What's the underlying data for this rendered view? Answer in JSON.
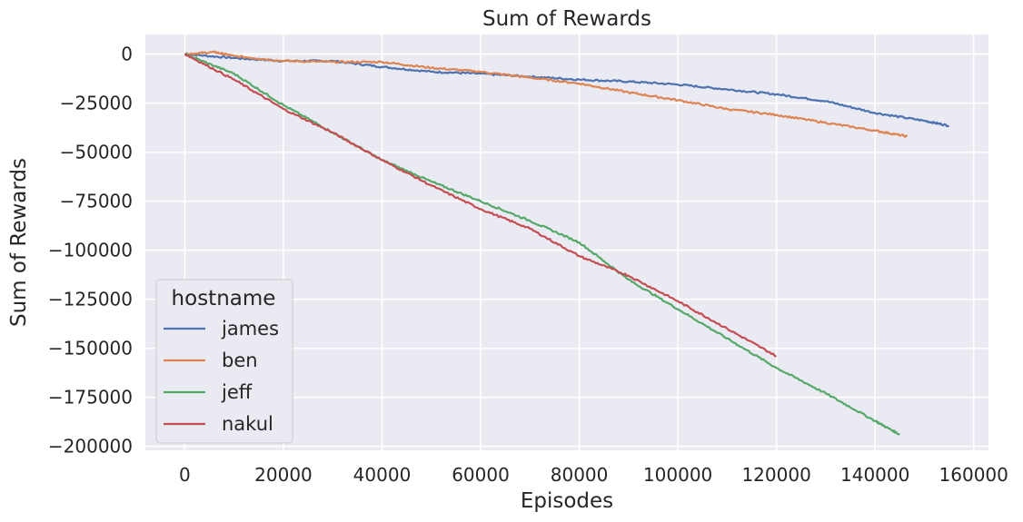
{
  "chart_data": {
    "type": "line",
    "title": "Sum of Rewards",
    "xlabel": "Episodes",
    "ylabel": "Sum of Rewards",
    "xlim": [
      -8000,
      163000
    ],
    "ylim": [
      -202000,
      10000
    ],
    "x_ticks": [
      0,
      20000,
      40000,
      60000,
      80000,
      100000,
      120000,
      140000,
      160000
    ],
    "x_tick_labels": [
      "0",
      "20000",
      "40000",
      "60000",
      "80000",
      "100000",
      "120000",
      "140000",
      "160000"
    ],
    "y_ticks": [
      0,
      -25000,
      -50000,
      -75000,
      -100000,
      -125000,
      -150000,
      -175000,
      -200000
    ],
    "y_tick_labels": [
      "0",
      "−25000",
      "−50000",
      "−75000",
      "−100000",
      "−125000",
      "−150000",
      "−175000",
      "−200000"
    ],
    "grid": true,
    "style": "seaborn-darkgrid",
    "legend": {
      "title": "hostname",
      "placement": "lower-left"
    },
    "series": [
      {
        "name": "james",
        "color": "#4c72b0",
        "points": [
          [
            0,
            0
          ],
          [
            10000,
            -2000
          ],
          [
            20000,
            -3500
          ],
          [
            30000,
            -3500
          ],
          [
            40000,
            -6500
          ],
          [
            50000,
            -9000
          ],
          [
            60000,
            -10000
          ],
          [
            70000,
            -11500
          ],
          [
            80000,
            -13000
          ],
          [
            90000,
            -14000
          ],
          [
            100000,
            -15500
          ],
          [
            110000,
            -18000
          ],
          [
            120000,
            -20500
          ],
          [
            130000,
            -24000
          ],
          [
            140000,
            -30000
          ],
          [
            150000,
            -34000
          ],
          [
            155000,
            -36500
          ]
        ]
      },
      {
        "name": "ben",
        "color": "#dd8452",
        "points": [
          [
            0,
            0
          ],
          [
            6000,
            1000
          ],
          [
            10000,
            -1000
          ],
          [
            20000,
            -3500
          ],
          [
            30000,
            -4000
          ],
          [
            40000,
            -4000
          ],
          [
            50000,
            -7000
          ],
          [
            60000,
            -9000
          ],
          [
            70000,
            -12000
          ],
          [
            80000,
            -15000
          ],
          [
            90000,
            -19500
          ],
          [
            100000,
            -23500
          ],
          [
            110000,
            -28000
          ],
          [
            120000,
            -31000
          ],
          [
            130000,
            -35000
          ],
          [
            140000,
            -39000
          ],
          [
            146500,
            -42000
          ]
        ]
      },
      {
        "name": "jeff",
        "color": "#55a868",
        "points": [
          [
            0,
            0
          ],
          [
            10000,
            -10000
          ],
          [
            20000,
            -26000
          ],
          [
            30000,
            -40000
          ],
          [
            40000,
            -54000
          ],
          [
            50000,
            -65000
          ],
          [
            60000,
            -75000
          ],
          [
            70000,
            -85000
          ],
          [
            80000,
            -96000
          ],
          [
            90000,
            -115000
          ],
          [
            100000,
            -130000
          ],
          [
            110000,
            -145000
          ],
          [
            120000,
            -160000
          ],
          [
            130000,
            -173000
          ],
          [
            140000,
            -187000
          ],
          [
            145000,
            -194000
          ]
        ]
      },
      {
        "name": "nakul",
        "color": "#c44e52",
        "points": [
          [
            0,
            0
          ],
          [
            10000,
            -13000
          ],
          [
            20000,
            -28000
          ],
          [
            30000,
            -40000
          ],
          [
            40000,
            -54000
          ],
          [
            50000,
            -67000
          ],
          [
            60000,
            -79000
          ],
          [
            70000,
            -89000
          ],
          [
            80000,
            -103000
          ],
          [
            90000,
            -113000
          ],
          [
            100000,
            -126000
          ],
          [
            110000,
            -140000
          ],
          [
            120000,
            -154000
          ]
        ]
      }
    ]
  }
}
